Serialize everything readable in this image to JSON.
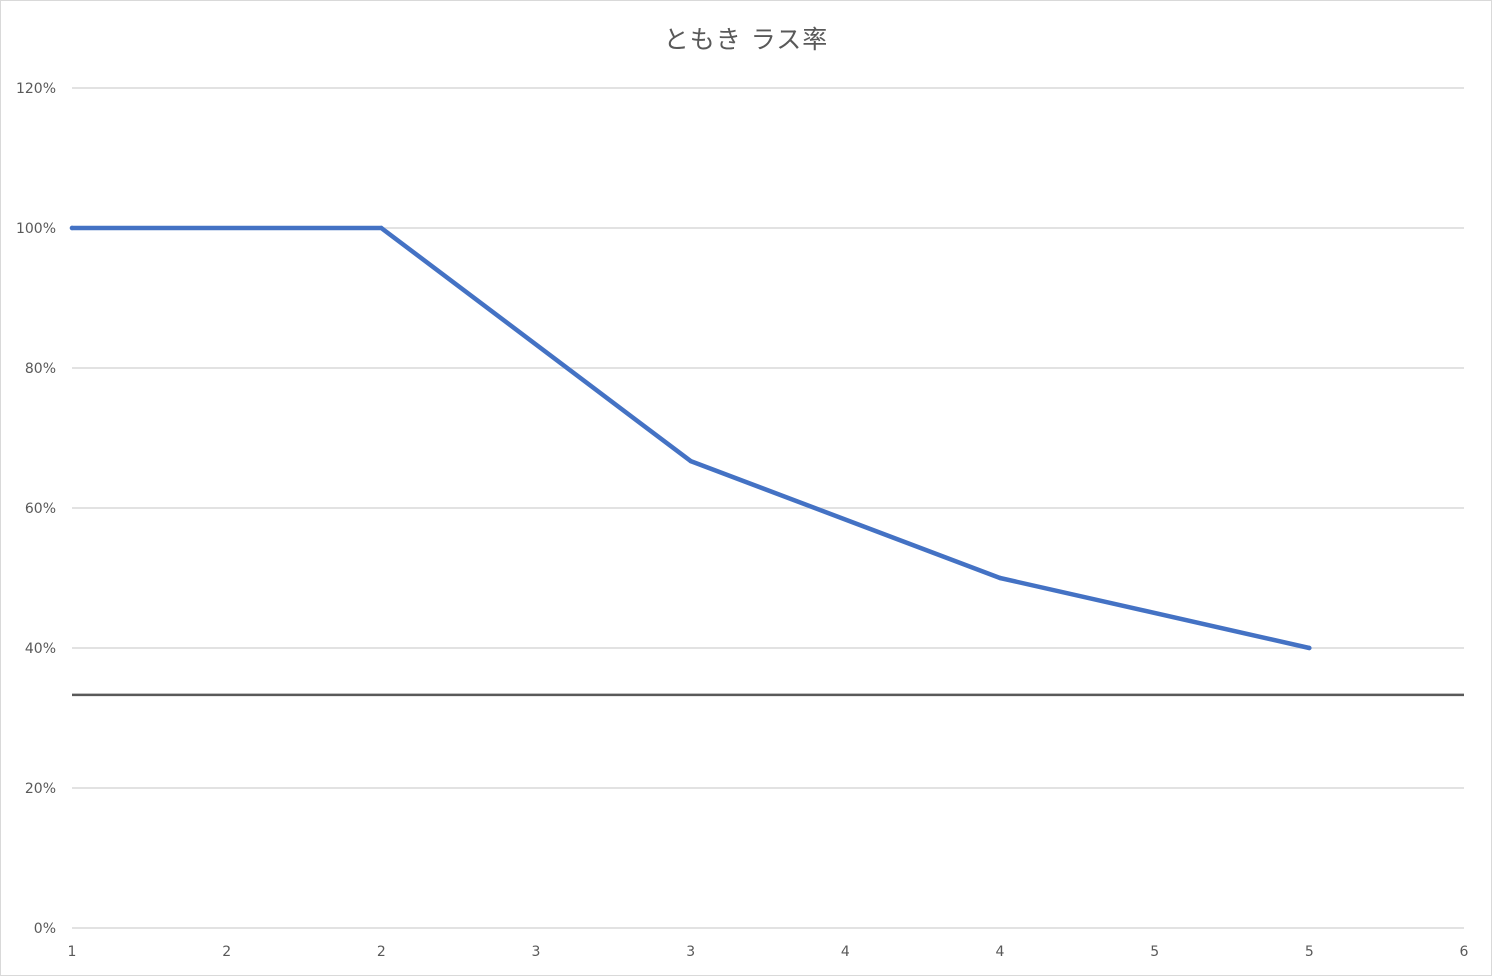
{
  "chart_data": {
    "type": "line",
    "title": "ともき ラス率",
    "xlabel": "",
    "ylabel": "",
    "x_tick_labels": [
      "1",
      "2",
      "2",
      "3",
      "3",
      "4",
      "4",
      "5",
      "5",
      "6"
    ],
    "y_tick_labels": [
      "0%",
      "20%",
      "40%",
      "60%",
      "80%",
      "100%",
      "120%"
    ],
    "y_ticks": [
      0,
      20,
      40,
      60,
      80,
      100,
      120
    ],
    "ylim": [
      0,
      120
    ],
    "series": [
      {
        "values": [
          {
            "x": 1,
            "y": 100
          },
          {
            "x": 2,
            "y": 100
          },
          {
            "x": 3,
            "y": 66.7
          },
          {
            "x": 4,
            "y": 50
          },
          {
            "x": 5,
            "y": 40
          }
        ],
        "color": "#4472c4"
      }
    ],
    "reference_line": {
      "y": 33.3,
      "color": "#595959"
    },
    "grid": true,
    "legend": "none"
  }
}
